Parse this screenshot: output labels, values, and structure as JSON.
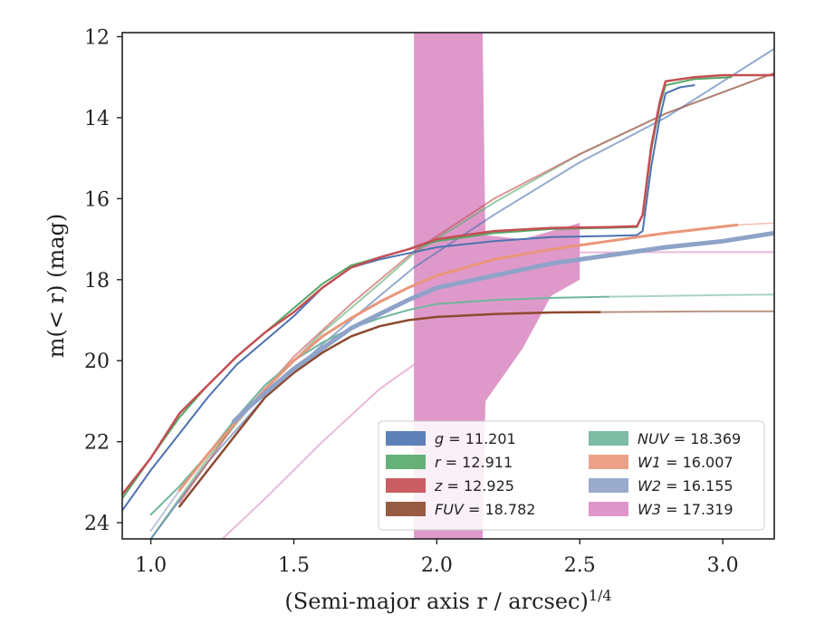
{
  "chart_data": {
    "type": "line",
    "xlabel": "(Semi-major axis r / arcsec)",
    "xlabel_superscript": "1/4",
    "ylabel": "m(< r) (mag)",
    "xlim": [
      0.9,
      3.18
    ],
    "ylim": [
      24.4,
      11.9
    ],
    "y_inverted": true,
    "x_ticks": [
      1.0,
      1.5,
      2.0,
      2.5,
      3.0
    ],
    "x_tick_labels": [
      "1.0",
      "1.5",
      "2.0",
      "2.5",
      "3.0"
    ],
    "y_ticks": [
      12,
      14,
      16,
      18,
      20,
      22,
      24
    ],
    "y_tick_labels": [
      "12",
      "14",
      "16",
      "18",
      "20",
      "22",
      "24"
    ],
    "grid": false,
    "legend_position": "lower-right",
    "legend_entries": [
      {
        "band": "g",
        "value": "11.201",
        "color": "#4c72b0"
      },
      {
        "band": "r",
        "value": "12.911",
        "color": "#55a868"
      },
      {
        "band": "z",
        "value": "12.925",
        "color": "#c44e52"
      },
      {
        "band": "FUV",
        "value": "18.782",
        "color": "#8c4a2f"
      },
      {
        "band": "NUV",
        "value": "18.369",
        "color": "#6fb59b"
      },
      {
        "band": "W1",
        "value": "16.007",
        "color": "#e9967a"
      },
      {
        "band": "W2",
        "value": "16.155",
        "color": "#8fa2c8"
      },
      {
        "band": "W3",
        "value": "17.319",
        "color": "#da8bc3"
      }
    ],
    "series": [
      {
        "band": "g",
        "color": "#4c72b0",
        "width": 2,
        "x": [
          0.9,
          1.0,
          1.1,
          1.2,
          1.3,
          1.4,
          1.5,
          1.6,
          1.7,
          1.8,
          1.9,
          2.0,
          2.2,
          2.4,
          2.6,
          2.7,
          2.72,
          2.75,
          2.78,
          2.8,
          2.85,
          2.9
        ],
        "y": [
          23.7,
          22.7,
          21.8,
          20.9,
          20.1,
          19.5,
          18.9,
          18.2,
          17.7,
          17.5,
          17.35,
          17.2,
          17.05,
          16.95,
          16.92,
          16.9,
          16.8,
          15.2,
          14.0,
          13.4,
          13.25,
          13.2
        ]
      },
      {
        "band": "r",
        "color": "#55a868",
        "width": 2,
        "x": [
          0.9,
          1.0,
          1.1,
          1.2,
          1.3,
          1.4,
          1.5,
          1.6,
          1.7,
          1.8,
          1.9,
          2.0,
          2.2,
          2.4,
          2.6,
          2.7,
          2.72,
          2.75,
          2.78,
          2.8,
          2.9,
          3.03
        ],
        "y": [
          23.4,
          22.4,
          21.4,
          20.6,
          19.9,
          19.3,
          18.7,
          18.1,
          17.65,
          17.45,
          17.25,
          17.05,
          16.85,
          16.75,
          16.72,
          16.7,
          16.4,
          14.8,
          13.7,
          13.2,
          13.05,
          13.0
        ]
      },
      {
        "band": "z",
        "color": "#c44e52",
        "width": 2.5,
        "x": [
          0.9,
          1.0,
          1.1,
          1.2,
          1.3,
          1.4,
          1.5,
          1.6,
          1.7,
          1.8,
          1.9,
          2.0,
          2.2,
          2.4,
          2.6,
          2.7,
          2.72,
          2.75,
          2.78,
          2.8,
          2.9,
          3.0,
          3.18
        ],
        "y": [
          23.3,
          22.4,
          21.3,
          20.6,
          19.9,
          19.3,
          18.8,
          18.2,
          17.7,
          17.45,
          17.25,
          17.0,
          16.8,
          16.72,
          16.7,
          16.68,
          16.4,
          14.7,
          13.6,
          13.1,
          13.0,
          12.95,
          12.95
        ]
      },
      {
        "band": "FUV",
        "color": "#8c4a2f",
        "width": 2.5,
        "x": [
          1.1,
          1.2,
          1.3,
          1.4,
          1.5,
          1.6,
          1.7,
          1.8,
          1.9,
          2.0,
          2.2,
          2.4,
          2.57
        ],
        "y": [
          23.6,
          22.7,
          21.8,
          20.9,
          20.3,
          19.8,
          19.4,
          19.15,
          19.0,
          18.92,
          18.85,
          18.81,
          18.8
        ]
      },
      {
        "band": "FUV",
        "color": "#8c4a2f",
        "width": 2,
        "faded": true,
        "x": [
          2.57,
          2.8,
          3.0,
          3.18
        ],
        "y": [
          18.8,
          18.79,
          18.78,
          18.78
        ]
      },
      {
        "band": "NUV",
        "color": "#6fb59b",
        "width": 2,
        "x": [
          1.0,
          1.1,
          1.2,
          1.3,
          1.4,
          1.5,
          1.6,
          1.7,
          1.8,
          1.9,
          2.0,
          2.2,
          2.4,
          2.6
        ],
        "y": [
          23.8,
          23.1,
          22.3,
          21.4,
          20.6,
          20.0,
          19.55,
          19.2,
          18.95,
          18.75,
          18.6,
          18.5,
          18.45,
          18.42
        ]
      },
      {
        "band": "NUV",
        "color": "#6fb59b",
        "width": 2,
        "faded": true,
        "x": [
          2.6,
          2.8,
          3.0,
          3.18
        ],
        "y": [
          18.42,
          18.4,
          18.38,
          18.37
        ]
      },
      {
        "band": "W1",
        "color": "#e9967a",
        "width": 3,
        "x": [
          1.1,
          1.2,
          1.3,
          1.4,
          1.5,
          1.6,
          1.7,
          1.8,
          1.9,
          2.0,
          2.2,
          2.4,
          2.6,
          2.8,
          3.05
        ],
        "y": [
          23.2,
          22.3,
          21.5,
          20.7,
          20.0,
          19.4,
          18.95,
          18.55,
          18.2,
          17.9,
          17.5,
          17.25,
          17.05,
          16.85,
          16.65
        ]
      },
      {
        "band": "W1",
        "color": "#e9967a",
        "width": 1.5,
        "faded": true,
        "x": [
          3.05,
          3.18
        ],
        "y": [
          16.65,
          16.6
        ]
      },
      {
        "band": "W2",
        "color": "#8fa2c8",
        "width": 5,
        "x": [
          1.29,
          1.35,
          1.4,
          1.5,
          1.6,
          1.7,
          1.8,
          1.9,
          2.0,
          2.2,
          2.4,
          2.6,
          2.8,
          3.0,
          3.18
        ],
        "y": [
          21.5,
          21.1,
          20.8,
          20.2,
          19.7,
          19.2,
          18.85,
          18.5,
          18.2,
          17.9,
          17.6,
          17.4,
          17.2,
          17.05,
          16.85
        ]
      },
      {
        "band": "W2",
        "color": "#8fa2c8",
        "width": 2,
        "faded": true,
        "x": [
          1.0,
          1.1,
          1.2,
          1.29
        ],
        "y": [
          24.2,
          23.2,
          22.3,
          21.5
        ]
      },
      {
        "band": "W3",
        "color": "#da8bc3",
        "width": 2,
        "faded": true,
        "x": [
          1.25,
          1.4,
          1.6,
          1.8,
          1.92
        ],
        "y": [
          24.4,
          23.4,
          22.0,
          20.7,
          20.1
        ]
      },
      {
        "band": "W3",
        "color": "#da8bc3",
        "width": 2,
        "faded": true,
        "x": [
          2.5,
          2.8,
          3.0,
          3.18
        ],
        "y": [
          17.33,
          17.32,
          17.32,
          17.32
        ]
      },
      {
        "band": "r",
        "color": "#55a868",
        "width": 2,
        "faded": true,
        "x": [
          1.0,
          1.2,
          1.4,
          1.6,
          1.8,
          1.92,
          2.2,
          2.5,
          2.8,
          3.18
        ],
        "y": [
          24.4,
          22.4,
          20.7,
          19.3,
          18.1,
          17.35,
          16.1,
          14.9,
          13.9,
          12.9
        ]
      },
      {
        "band": "g",
        "color": "#4c72b0",
        "width": 2,
        "faded": true,
        "x": [
          1.0,
          1.2,
          1.4,
          1.6,
          1.8,
          1.92,
          2.2,
          2.5,
          2.8,
          3.18
        ],
        "y": [
          24.4,
          22.5,
          20.9,
          19.6,
          18.4,
          17.7,
          16.4,
          15.1,
          14.0,
          12.3
        ]
      },
      {
        "band": "z",
        "color": "#c44e52",
        "width": 2,
        "faded": true,
        "x": [
          1.1,
          1.3,
          1.5,
          1.7,
          1.92,
          2.2,
          2.5,
          2.8,
          3.18
        ],
        "y": [
          23.5,
          21.5,
          19.9,
          18.6,
          17.3,
          16.0,
          14.9,
          13.9,
          12.9
        ]
      }
    ],
    "bands": [
      {
        "band": "W3",
        "color": "#da8bc3",
        "x": [
          1.92,
          1.935,
          2.16,
          2.17,
          2.3,
          2.4,
          2.5
        ],
        "y_upper": [
          11.9,
          11.9,
          11.9,
          16.9,
          17.0,
          16.8,
          16.6
        ],
        "y_lower": [
          24.4,
          24.4,
          24.4,
          21.0,
          19.7,
          18.4,
          18.0
        ]
      }
    ]
  }
}
